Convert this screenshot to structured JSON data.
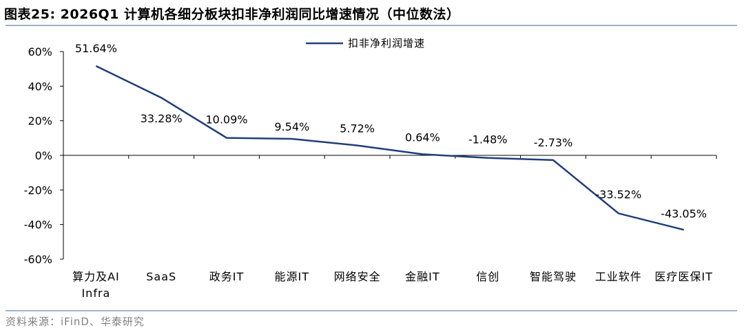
{
  "title": "图表25:  2026Q1 计算机各细分板块扣非净利润同比增速情况（中位数法）",
  "source": "资料来源：iFinD、华泰研究",
  "colors": {
    "line": "#1f3d7a",
    "axis": "#000000",
    "rule": "#9db3c9"
  },
  "chart_data": {
    "type": "line",
    "categories": [
      "算力及AI Infra",
      "SaaS",
      "政务IT",
      "能源IT",
      "网络安全",
      "金融IT",
      "信创",
      "智能驾驶",
      "工业软件",
      "医疗医保IT"
    ],
    "category_lines": [
      [
        "算力及AI",
        "Infra"
      ],
      [
        "SaaS"
      ],
      [
        "政务IT"
      ],
      [
        "能源IT"
      ],
      [
        "网络安全"
      ],
      [
        "金融IT"
      ],
      [
        "信创"
      ],
      [
        "智能驾驶"
      ],
      [
        "工业软件"
      ],
      [
        "医疗医保IT"
      ]
    ],
    "series": [
      {
        "name": "扣非净利润增速",
        "values": [
          51.64,
          33.28,
          10.09,
          9.54,
          5.72,
          0.64,
          -1.48,
          -2.73,
          -33.52,
          -43.05
        ],
        "labels": [
          "51.64%",
          "33.28%",
          "10.09%",
          "9.54%",
          "5.72%",
          "0.64%",
          "-1.48%",
          "-2.73%",
          "-33.52%",
          "-43.05%"
        ]
      }
    ],
    "ylim": [
      -60,
      60
    ],
    "yticks": [
      60,
      40,
      20,
      0,
      -20,
      -40,
      -60
    ],
    "ytick_labels": [
      "60%",
      "40%",
      "20%",
      "0%",
      "-20%",
      "-40%",
      "-60%"
    ],
    "xlabel": "",
    "ylabel": "",
    "grid": false,
    "legend_position": "top-center"
  }
}
